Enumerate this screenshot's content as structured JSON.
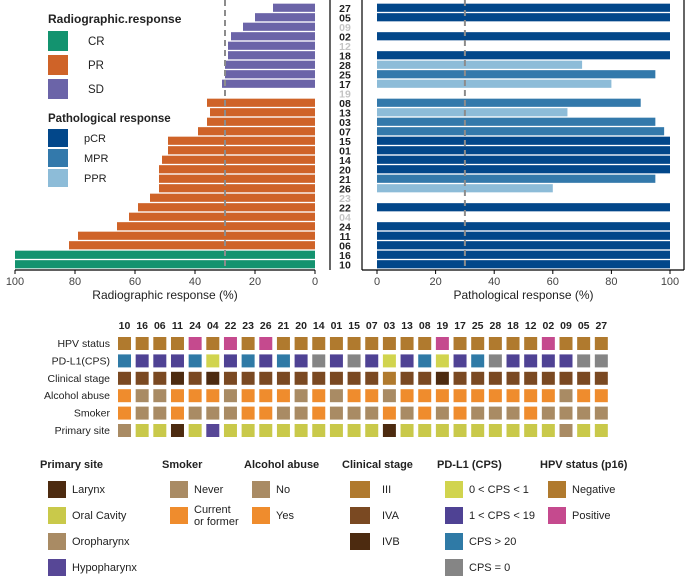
{
  "colors": {
    "CR": "#13936f",
    "PR": "#cf6328",
    "SD": "#6b64a8",
    "pCR": "#02478a",
    "MPR": "#3379ab",
    "PPR": "#8dbcd8",
    "label_dim": "#c4c4c4",
    "ref_line": "#8c8c8c",
    "Larynx": "#4d2b10",
    "Oral Cavity": "#c9c94a",
    "Oropharynx": "#a98b64",
    "Hypopharynx": "#574796",
    "Never": "#a98b64",
    "Current or former": "#ef8c2d",
    "No": "#a98b64",
    "Yes": "#ef8c2d",
    "III": "#b07a2e",
    "IVA": "#7a4922",
    "IVB": "#4d2b10",
    "0 < CPS < 1": "#d1d44e",
    "1 < CPS < 19": "#4f4294",
    "CPS > 20": "#2f7aa6",
    "CPS = 0": "#858585",
    "Negative": "#b07a2e",
    "Positive": "#c54a8e"
  },
  "chart_data": [
    {
      "type": "bar",
      "orientation": "horizontal",
      "title": "Radiographic response",
      "xlabel": "Radiographic response (%)",
      "xlim": [
        100,
        0
      ],
      "xticks": [
        "100",
        "80",
        "60",
        "40",
        "20",
        "0"
      ],
      "reference_line": 30,
      "patients": [
        "27",
        "05",
        "09",
        "02",
        "12",
        "18",
        "28",
        "25",
        "17",
        "19",
        "08",
        "13",
        "03",
        "07",
        "15",
        "01",
        "14",
        "20",
        "21",
        "26",
        "23",
        "22",
        "04",
        "24",
        "11",
        "06",
        "16",
        "10"
      ],
      "dim_patients": [
        "09",
        "12",
        "19",
        "23",
        "04"
      ],
      "values": [
        14,
        20,
        24,
        28,
        29,
        29,
        30,
        30,
        31,
        0,
        36,
        35,
        36,
        39,
        49,
        49,
        51,
        52,
        52,
        52,
        55,
        59,
        62,
        66,
        79,
        82,
        100,
        100
      ],
      "categories": [
        "SD",
        "SD",
        "SD",
        "SD",
        "SD",
        "SD",
        "SD",
        "SD",
        "SD",
        "",
        "PR",
        "PR",
        "PR",
        "PR",
        "PR",
        "PR",
        "PR",
        "PR",
        "PR",
        "PR",
        "PR",
        "PR",
        "PR",
        "PR",
        "PR",
        "PR",
        "CR",
        "CR"
      ]
    },
    {
      "type": "bar",
      "orientation": "horizontal",
      "title": "Pathological response",
      "xlabel": "Pathological response (%)",
      "xlim": [
        0,
        100
      ],
      "xticks": [
        "0",
        "20",
        "40",
        "60",
        "80",
        "100"
      ],
      "reference_line": 30,
      "patients": [
        "27",
        "05",
        "09",
        "02",
        "12",
        "18",
        "28",
        "25",
        "17",
        "19",
        "08",
        "13",
        "03",
        "07",
        "15",
        "01",
        "14",
        "20",
        "21",
        "26",
        "23",
        "22",
        "04",
        "24",
        "11",
        "06",
        "16",
        "10"
      ],
      "values": [
        100,
        100,
        0,
        100,
        0,
        100,
        70,
        95,
        80,
        0,
        90,
        65,
        95,
        98,
        100,
        100,
        100,
        100,
        95,
        60,
        0,
        100,
        0,
        100,
        100,
        100,
        100,
        100
      ],
      "categories": [
        "pCR",
        "pCR",
        "",
        "pCR",
        "",
        "pCR",
        "PPR",
        "MPR",
        "PPR",
        "",
        "MPR",
        "PPR",
        "MPR",
        "MPR",
        "pCR",
        "pCR",
        "pCR",
        "pCR",
        "MPR",
        "PPR",
        "",
        "pCR",
        "",
        "pCR",
        "pCR",
        "pCR",
        "pCR",
        "pCR"
      ]
    },
    {
      "type": "heatmap",
      "columns": [
        "10",
        "16",
        "06",
        "11",
        "24",
        "04",
        "22",
        "23",
        "26",
        "21",
        "20",
        "14",
        "01",
        "15",
        "07",
        "03",
        "13",
        "08",
        "19",
        "17",
        "25",
        "28",
        "18",
        "12",
        "02",
        "09",
        "05",
        "27"
      ],
      "rows": [
        "HPV status",
        "PD-L1(CPS)",
        "Clinical stage",
        "Alcohol abuse",
        "Smoker",
        "Primary site"
      ],
      "cells": {
        "HPV status": [
          "Negative",
          "Negative",
          "Negative",
          "Negative",
          "Positive",
          "Negative",
          "Positive",
          "Negative",
          "Positive",
          "Negative",
          "Negative",
          "Negative",
          "Negative",
          "Negative",
          "Negative",
          "Negative",
          "Negative",
          "Negative",
          "Positive",
          "Negative",
          "Negative",
          "Negative",
          "Negative",
          "Negative",
          "Positive",
          "Negative",
          "Negative",
          "Negative"
        ],
        "PD-L1(CPS)": [
          "CPS > 20",
          "1 < CPS < 19",
          "1 < CPS < 19",
          "1 < CPS < 19",
          "CPS > 20",
          "0 < CPS < 1",
          "1 < CPS < 19",
          "CPS > 20",
          "1 < CPS < 19",
          "CPS > 20",
          "1 < CPS < 19",
          "CPS = 0",
          "1 < CPS < 19",
          "CPS = 0",
          "1 < CPS < 19",
          "0 < CPS < 1",
          "1 < CPS < 19",
          "CPS > 20",
          "0 < CPS < 1",
          "1 < CPS < 19",
          "CPS > 20",
          "CPS = 0",
          "1 < CPS < 19",
          "1 < CPS < 19",
          "1 < CPS < 19",
          "1 < CPS < 19",
          "CPS = 0",
          "CPS = 0"
        ],
        "Clinical stage": [
          "IVA",
          "IVA",
          "IVA",
          "IVB",
          "IVA",
          "IVB",
          "IVA",
          "IVA",
          "IVA",
          "IVA",
          "IVA",
          "IVA",
          "IVA",
          "IVA",
          "IVA",
          "III",
          "IVA",
          "IVA",
          "IVB",
          "IVA",
          "IVA",
          "IVA",
          "IVA",
          "IVA",
          "IVA",
          "IVA",
          "IVA",
          "IVA"
        ],
        "Alcohol abuse": [
          "Yes",
          "No",
          "No",
          "Yes",
          "Yes",
          "Yes",
          "No",
          "Yes",
          "Yes",
          "Yes",
          "No",
          "Yes",
          "No",
          "Yes",
          "Yes",
          "No",
          "Yes",
          "Yes",
          "Yes",
          "Yes",
          "Yes",
          "Yes",
          "Yes",
          "Yes",
          "Yes",
          "No",
          "Yes",
          "Yes"
        ],
        "Smoker": [
          "Current or former",
          "Never",
          "Never",
          "Current or former",
          "Never",
          "Never",
          "Never",
          "Current or former",
          "Current or former",
          "Never",
          "Never",
          "Current or former",
          "Never",
          "Never",
          "Never",
          "Current or former",
          "Never",
          "Current or former",
          "Never",
          "Current or former",
          "Never",
          "Never",
          "Never",
          "Current or former",
          "Never",
          "Never",
          "Never",
          "Never"
        ],
        "Primary site": [
          "Oropharynx",
          "Oral Cavity",
          "Oral Cavity",
          "Larynx",
          "Oral Cavity",
          "Hypopharynx",
          "Oral Cavity",
          "Oral Cavity",
          "Oral Cavity",
          "Oral Cavity",
          "Oral Cavity",
          "Oral Cavity",
          "Oral Cavity",
          "Oral Cavity",
          "Oral Cavity",
          "Larynx",
          "Oral Cavity",
          "Oral Cavity",
          "Oral Cavity",
          "Oral Cavity",
          "Oral Cavity",
          "Oral Cavity",
          "Oral Cavity",
          "Oral Cavity",
          "Oral Cavity",
          "Oropharynx",
          "Oral Cavity",
          "Oral Cavity"
        ]
      }
    }
  ],
  "legends": {
    "radiographic": {
      "title": "Radiographic.response",
      "items": [
        "CR",
        "PR",
        "SD"
      ]
    },
    "pathological": {
      "title": "Pathological response",
      "items": [
        "pCR",
        "MPR",
        "PPR"
      ]
    },
    "bottom": [
      {
        "title": "Primary site",
        "items": [
          "Larynx",
          "Oral Cavity",
          "Oropharynx",
          "Hypopharynx"
        ]
      },
      {
        "title": "Smoker",
        "items": [
          "Never",
          "Current or former"
        ],
        "item_lines": [
          [
            "Never"
          ],
          [
            "Current",
            "or former"
          ]
        ]
      },
      {
        "title": "Alcohol abuse",
        "items": [
          "No",
          "Yes"
        ]
      },
      {
        "title": "Clinical stage",
        "items": [
          "III",
          "IVA",
          "IVB"
        ]
      },
      {
        "title": "PD-L1 (CPS)",
        "items": [
          "0 < CPS < 1",
          "1 < CPS < 19",
          "CPS > 20",
          "CPS = 0"
        ]
      },
      {
        "title": "HPV status (p16)",
        "items": [
          "Negative",
          "Positive"
        ]
      }
    ]
  }
}
